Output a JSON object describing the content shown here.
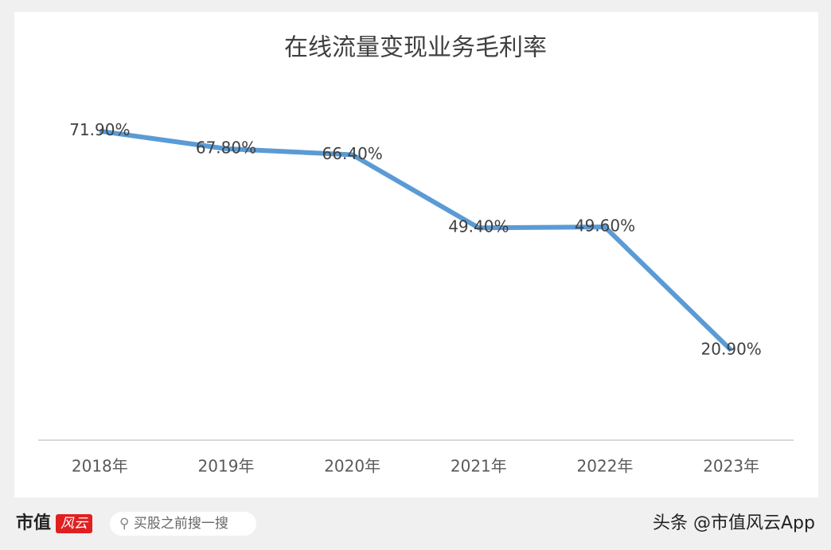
{
  "chart_data": {
    "type": "line",
    "title": "在线流量变现业务毛利率",
    "categories": [
      "2018年",
      "2019年",
      "2020年",
      "2021年",
      "2022年",
      "2023年"
    ],
    "values": [
      71.9,
      67.8,
      66.4,
      49.4,
      49.6,
      20.9
    ],
    "value_labels": [
      "71.90%",
      "67.80%",
      "66.40%",
      "49.40%",
      "49.60%",
      "20.90%"
    ],
    "color": "#5b9bd5",
    "ylim": [
      0,
      80
    ]
  },
  "footer": {
    "logo": "市值",
    "badge": "风云",
    "search": "买股之前搜一搜",
    "account": "头条 @市值风云App"
  }
}
